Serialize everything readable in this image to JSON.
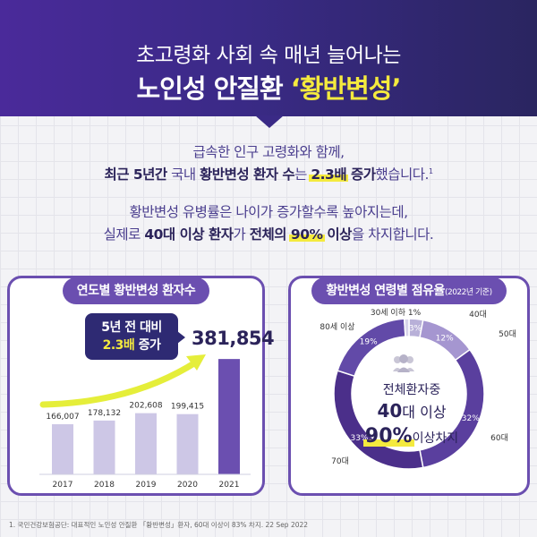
{
  "header": {
    "line1": "초고령화 사회 속 매년 늘어나는",
    "line2_prefix": "노인성 안질환 ",
    "line2_accent": "‘황반변성’"
  },
  "intro": {
    "l1": "급속한 인구 고령화와 함께,",
    "l2_a": "최근 5년간",
    "l2_b": " 국내 ",
    "l2_c": "황반변성 환자 수",
    "l2_d": "는 ",
    "l2_e": "2.3배",
    "l2_f": " 증가",
    "l2_g": "했습니다.",
    "l2_sup": "1",
    "l3": "황반변성 유병률은 나이가 증가할수록 높아지는데,",
    "l4_a": "실제로 ",
    "l4_b": "40대 이상 환자",
    "l4_c": "가 ",
    "l4_d": "전체의 ",
    "l4_e": "90%",
    "l4_f": " 이상",
    "l4_g": "을 차지합니다."
  },
  "left_card": {
    "title": "연도별 황반변성 환자수",
    "badge_l1": "5년 전 대비",
    "badge_l2_a": "2.3배",
    "badge_l2_b": " 증가",
    "highlight_value": "381,854"
  },
  "right_card": {
    "title": "황반변성 연령별 점유율",
    "title_note": "(2022년 기준)",
    "center_l1": "전체환자중",
    "center_l2_a": "40",
    "center_l2_b": "대 이상",
    "center_l3_a": "90%",
    "center_l3_b": "이상차지"
  },
  "footnote": "1. 국민건강보험공단: 대표적인 노인성 안질환 「황반변성」환자, 60대 이상이 83% 차지. 22 Sep 2022",
  "colors": {
    "primary": "#6b4fb0",
    "navy": "#2e2a73",
    "accent_yellow": "#f4ea3e",
    "bar_light": "#cdc7e6",
    "bar_dark": "#6b4fb0"
  },
  "chart_data": [
    {
      "type": "bar",
      "categories": [
        "2017",
        "2018",
        "2019",
        "2020",
        "2021"
      ],
      "values": [
        166007,
        178132,
        202608,
        199415,
        381854
      ],
      "labels": [
        "166,007",
        "178,132",
        "202,608",
        "199,415",
        "381,854"
      ],
      "title": "연도별 황반변성 환자수",
      "ylim": [
        0,
        400000
      ]
    },
    {
      "type": "pie",
      "title": "황반변성 연령별 점유율",
      "categories": [
        "40대",
        "50대",
        "60대",
        "70대",
        "80세 이상",
        "30세 이하"
      ],
      "values": [
        3,
        12,
        32,
        33,
        19,
        1
      ],
      "labels": [
        "3%",
        "12%",
        "32%",
        "33%",
        "19%",
        "1%"
      ]
    }
  ]
}
